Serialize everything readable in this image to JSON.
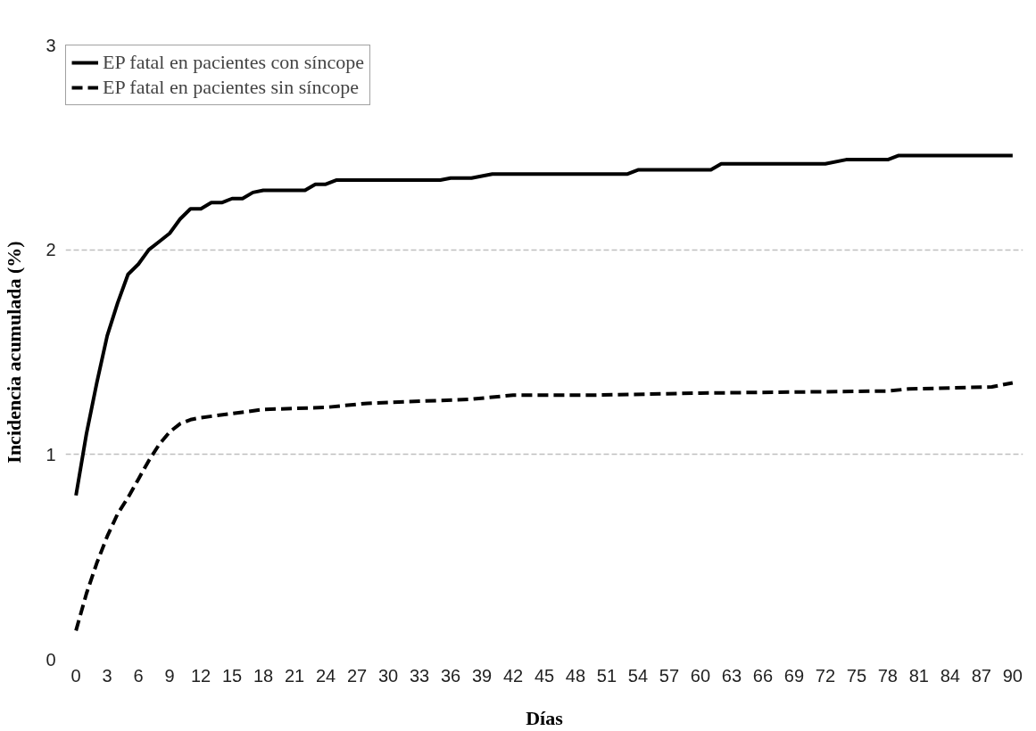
{
  "chart_data": {
    "type": "line",
    "xlabel": "Días",
    "ylabel": "Incidencia acumulada (%)",
    "xlim": [
      -1,
      91
    ],
    "ylim": [
      0,
      3
    ],
    "xticks": [
      0,
      3,
      6,
      9,
      12,
      15,
      18,
      21,
      24,
      27,
      30,
      33,
      36,
      39,
      42,
      45,
      48,
      51,
      54,
      57,
      60,
      63,
      66,
      69,
      72,
      75,
      78,
      81,
      84,
      87,
      90
    ],
    "yticks": [
      0,
      1,
      2,
      3
    ],
    "grid": "y",
    "legend": "top left",
    "series": [
      {
        "name": "EP fatal en pacientes con síncope",
        "color": "#000000",
        "line_style": "solid",
        "x": [
          0,
          1,
          2,
          3,
          4,
          5,
          6,
          7,
          8,
          9,
          10,
          11,
          12,
          13,
          14,
          15,
          16,
          17,
          18,
          22,
          23,
          24,
          25,
          35,
          36,
          38,
          40,
          53,
          54,
          61,
          62,
          72,
          74,
          78,
          79,
          90
        ],
        "values": [
          0.8,
          1.1,
          1.35,
          1.58,
          1.74,
          1.88,
          1.93,
          2.0,
          2.04,
          2.08,
          2.15,
          2.2,
          2.2,
          2.23,
          2.23,
          2.25,
          2.25,
          2.28,
          2.29,
          2.29,
          2.32,
          2.32,
          2.34,
          2.34,
          2.35,
          2.35,
          2.37,
          2.37,
          2.39,
          2.39,
          2.42,
          2.42,
          2.44,
          2.44,
          2.46,
          2.46
        ]
      },
      {
        "name": "EP fatal en pacientes sin síncope",
        "color": "#000000",
        "line_style": "dashed",
        "x": [
          0,
          1,
          2,
          3,
          4,
          5,
          6,
          7,
          8,
          9,
          10,
          11,
          12,
          15,
          18,
          24,
          28,
          33,
          38,
          42,
          50,
          60,
          78,
          80,
          88,
          90
        ],
        "values": [
          0.14,
          0.32,
          0.47,
          0.6,
          0.71,
          0.79,
          0.88,
          0.97,
          1.05,
          1.11,
          1.15,
          1.17,
          1.18,
          1.2,
          1.22,
          1.23,
          1.25,
          1.26,
          1.27,
          1.29,
          1.29,
          1.3,
          1.31,
          1.32,
          1.33,
          1.35
        ]
      }
    ]
  }
}
